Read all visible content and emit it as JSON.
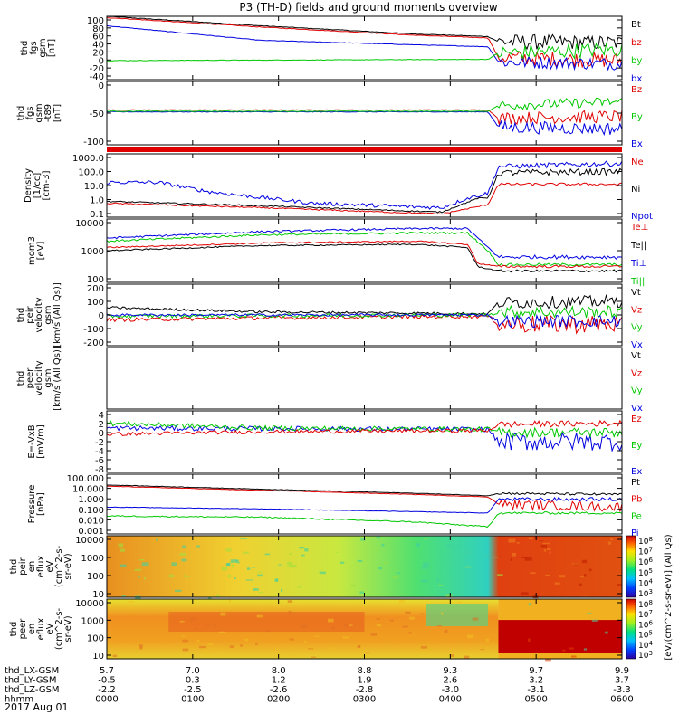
{
  "title": "P3 (TH-D) fields and ground moments overview",
  "colors": {
    "black": "#000000",
    "red": "#e00000",
    "green": "#00c800",
    "blue": "#0000e0"
  },
  "panels": [
    {
      "ylabel": [
        "thd",
        "fgs",
        "gsm",
        "[nT]"
      ],
      "ticks": [
        "100",
        "80",
        "60",
        "40",
        "20",
        "0",
        "-20",
        "-40"
      ],
      "legend": [
        {
          "t": "Bt",
          "c": "black"
        },
        {
          "t": "bz",
          "c": "red"
        },
        {
          "t": "by",
          "c": "green"
        },
        {
          "t": "bx",
          "c": "blue"
        }
      ]
    },
    {
      "ylabel": [
        "thd",
        "fgs",
        "gsm",
        "-t89",
        "[nT]"
      ],
      "ticks": [
        "0",
        "-50",
        "-100"
      ],
      "legend": [
        {
          "t": "Bz",
          "c": "red"
        },
        {
          "t": "By",
          "c": "green"
        },
        {
          "t": "Bx",
          "c": "blue"
        }
      ]
    },
    {
      "ylabel": [
        "Density",
        "[1/cc]",
        "[cm-3]"
      ],
      "ticks": [
        "1000.0",
        "100.0",
        "10.0",
        "1.0",
        "0.1"
      ],
      "legend": [
        {
          "t": "Ne",
          "c": "red"
        },
        {
          "t": "Ni",
          "c": "black"
        },
        {
          "t": "Npot",
          "c": "blue"
        }
      ]
    },
    {
      "ylabel": [
        "mom3",
        "[eV]"
      ],
      "ticks": [
        "10000",
        "1000",
        "100"
      ],
      "legend": [
        {
          "t": "Te⊥",
          "c": "red"
        },
        {
          "t": "Te||",
          "c": "black"
        },
        {
          "t": "Ti⊥",
          "c": "blue"
        },
        {
          "t": "Ti||",
          "c": "green"
        }
      ]
    },
    {
      "ylabel": [
        "thd",
        "peir",
        "velocity",
        "gsm",
        "[km/s (All Qs)]"
      ],
      "ticks": [
        "200",
        "100",
        "0",
        "-100",
        "-200"
      ],
      "legend": [
        {
          "t": "Vt",
          "c": "black"
        },
        {
          "t": "Vz",
          "c": "red"
        },
        {
          "t": "Vy",
          "c": "green"
        },
        {
          "t": "Vx",
          "c": "blue"
        }
      ]
    },
    {
      "ylabel": [
        "thd",
        "peer",
        "velocity",
        "gsm",
        "[km/s (All Qs)]"
      ],
      "ticks": [],
      "legend": [
        {
          "t": "Vt",
          "c": "black"
        },
        {
          "t": "Vz",
          "c": "red"
        },
        {
          "t": "Vy",
          "c": "green"
        },
        {
          "t": "Vx",
          "c": "blue"
        }
      ]
    },
    {
      "ylabel": [
        "E=-VxB",
        "[mV/m]"
      ],
      "ticks": [
        "4",
        "2",
        "0",
        "-2",
        "-4",
        "-6",
        "-8"
      ],
      "legend": [
        {
          "t": "Ez",
          "c": "red"
        },
        {
          "t": "Ey",
          "c": "green"
        },
        {
          "t": "Ex",
          "c": "blue"
        }
      ]
    },
    {
      "ylabel": [
        "Pressure",
        "[nPa]"
      ],
      "ticks": [
        "100.000",
        "10.000",
        "1.000",
        "0.100",
        "0.010",
        "0.001"
      ],
      "legend": [
        {
          "t": "Pt",
          "c": "black"
        },
        {
          "t": "Pb",
          "c": "red"
        },
        {
          "t": "Pe",
          "c": "green"
        },
        {
          "t": "Pi",
          "c": "blue"
        }
      ]
    },
    {
      "ylabel": [
        "thd",
        "peir",
        "en",
        "eflux",
        "eV",
        "(cm^2-s-",
        "sr-eV)"
      ],
      "ticks": [
        "10000",
        "1000",
        "100",
        "10"
      ],
      "legend": []
    },
    {
      "ylabel": [
        "thd",
        "peer",
        "en",
        "eflux",
        "eV",
        "(cm^2-s-",
        "sr-eV)"
      ],
      "ticks": [
        "10000",
        "1000",
        "100",
        "10"
      ],
      "legend": []
    }
  ],
  "colorbar": {
    "label": "[eV/(cm^2-s-sr-eV)] (All Qs)",
    "ticks": [
      "10^8",
      "10^7",
      "10^6",
      "10^5",
      "10^4",
      "10^3"
    ]
  },
  "xaxis": {
    "rows": [
      {
        "label": "thd_LX-GSM",
        "values": [
          "5.7",
          "7.0",
          "8.0",
          "8.8",
          "9.3",
          "9.7",
          "9.9"
        ]
      },
      {
        "label": "thd_LY-GSM",
        "values": [
          "-0.5",
          "0.3",
          "1.2",
          "1.9",
          "2.6",
          "3.2",
          "3.7"
        ]
      },
      {
        "label": "thd_LZ-GSM",
        "values": [
          "-2.2",
          "-2.5",
          "-2.6",
          "-2.8",
          "-3.0",
          "-3.1",
          "-3.3"
        ]
      },
      {
        "label": "hhmm",
        "values": [
          "0000",
          "0100",
          "0200",
          "0300",
          "0400",
          "0500",
          "0600"
        ]
      }
    ],
    "date": "2017 Aug 01"
  },
  "chart_data": {
    "type": "line",
    "x_unit": "UT hhmm",
    "x": [
      "0000",
      "0100",
      "0200",
      "0300",
      "0400",
      "0500",
      "0600"
    ],
    "series": [
      {
        "name": "Bt",
        "values": [
          100,
          80,
          68,
          60,
          55,
          50,
          45
        ]
      },
      {
        "name": "bz",
        "values": [
          98,
          78,
          66,
          58,
          52,
          20,
          15
        ]
      },
      {
        "name": "by",
        "values": [
          -5,
          -5,
          -4,
          -4,
          -4,
          10,
          20
        ]
      },
      {
        "name": "bx",
        "values": [
          75,
          45,
          35,
          30,
          28,
          -10,
          -15
        ]
      },
      {
        "name": "Ni",
        "values": [
          1.2,
          0.9,
          0.6,
          0.5,
          1.0,
          40,
          40
        ]
      },
      {
        "name": "Npot",
        "values": [
          20,
          3,
          1.5,
          0.7,
          3,
          80,
          80
        ]
      },
      {
        "name": "Pt",
        "values": [
          5,
          3,
          2,
          1.5,
          1.2,
          1.5,
          1.3
        ]
      },
      {
        "name": "Pb",
        "values": [
          5,
          3,
          2,
          1.4,
          1.1,
          0.4,
          0.3
        ]
      },
      {
        "name": "Pi",
        "values": [
          0.3,
          0.25,
          0.2,
          0.2,
          0.15,
          0.9,
          0.9
        ]
      },
      {
        "name": "Pe",
        "values": [
          0.05,
          0.04,
          0.03,
          0.02,
          0.01,
          0.08,
          0.08
        ]
      }
    ]
  }
}
